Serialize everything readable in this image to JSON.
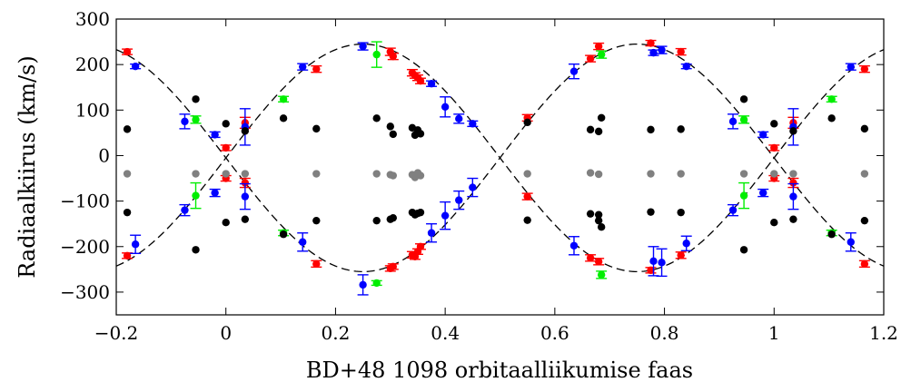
{
  "chart_data": {
    "type": "scatter",
    "xlabel": "BD+48 1098 orbitaalliikumise faas",
    "ylabel": "Radiaalkiirus (km/s)",
    "xlim": [
      -0.2,
      1.2
    ],
    "ylim": [
      -350,
      300
    ],
    "xticks": [
      -0.2,
      0,
      0.2,
      0.4,
      0.6,
      0.8,
      1,
      1.2
    ],
    "xtick_labels": [
      "−0.2",
      "0",
      "0.2",
      "0.4",
      "0.6",
      "0.8",
      "1",
      "1.2"
    ],
    "yticks": [
      -300,
      -200,
      -100,
      0,
      100,
      200,
      300
    ],
    "ytick_labels": [
      "−300",
      "−200",
      "−100",
      "0",
      "100",
      "200",
      "300"
    ],
    "grid": false,
    "model_curves": {
      "style": "dashed",
      "color": "#000000",
      "curves": [
        {
          "gamma": -5,
          "amplitude": 250,
          "phase_offset": 0
        },
        {
          "gamma": -5,
          "amplitude": -250,
          "phase_offset": 0
        }
      ]
    },
    "series": [
      {
        "color": "#ff0000",
        "marker": "circle-with-errorbar",
        "points": [
          {
            "x": -0.18,
            "y": 228,
            "err": 6
          },
          {
            "x": -0.18,
            "y": -220,
            "err": 6
          },
          {
            "x": 0.0,
            "y": 17,
            "err": 6
          },
          {
            "x": 0.0,
            "y": -50,
            "err": 6
          },
          {
            "x": 0.035,
            "y": 72,
            "err": 12
          },
          {
            "x": 0.035,
            "y": -60,
            "err": 10
          },
          {
            "x": 0.165,
            "y": 190,
            "err": 7
          },
          {
            "x": 0.165,
            "y": -238,
            "err": 7
          },
          {
            "x": 0.3,
            "y": 228,
            "err": 8
          },
          {
            "x": 0.3,
            "y": -248,
            "err": 6
          },
          {
            "x": 0.305,
            "y": 218,
            "err": 7
          },
          {
            "x": 0.305,
            "y": -244,
            "err": 6
          },
          {
            "x": 0.34,
            "y": 182,
            "err": 7
          },
          {
            "x": 0.34,
            "y": -218,
            "err": 7
          },
          {
            "x": 0.345,
            "y": 176,
            "err": 6
          },
          {
            "x": 0.345,
            "y": -222,
            "err": 6
          },
          {
            "x": 0.35,
            "y": 171,
            "err": 6
          },
          {
            "x": 0.35,
            "y": -211,
            "err": 6
          },
          {
            "x": 0.355,
            "y": 164,
            "err": 6
          },
          {
            "x": 0.355,
            "y": -200,
            "err": 6
          },
          {
            "x": 0.55,
            "y": 83,
            "err": 7
          },
          {
            "x": 0.55,
            "y": -90,
            "err": 7
          },
          {
            "x": 0.665,
            "y": 213,
            "err": 7
          },
          {
            "x": 0.665,
            "y": -225,
            "err": 7
          },
          {
            "x": 0.68,
            "y": 240,
            "err": 7
          },
          {
            "x": 0.68,
            "y": -233,
            "err": 7
          },
          {
            "x": 0.775,
            "y": 247,
            "err": 6
          },
          {
            "x": 0.775,
            "y": -252,
            "err": 6
          },
          {
            "x": 0.83,
            "y": 228,
            "err": 7
          },
          {
            "x": 0.83,
            "y": -219,
            "err": 7
          },
          {
            "x": 1.0,
            "y": 17,
            "err": 6
          },
          {
            "x": 1.0,
            "y": -50,
            "err": 6
          },
          {
            "x": 1.035,
            "y": 72,
            "err": 12
          },
          {
            "x": 1.035,
            "y": -60,
            "err": 10
          },
          {
            "x": 1.165,
            "y": 190,
            "err": 7
          },
          {
            "x": 1.165,
            "y": -238,
            "err": 7
          }
        ]
      },
      {
        "color": "#0000ff",
        "marker": "circle-with-errorbar",
        "points": [
          {
            "x": -0.165,
            "y": 196,
            "err": 5
          },
          {
            "x": -0.165,
            "y": -195,
            "err": 20
          },
          {
            "x": -0.075,
            "y": 75,
            "err": 16
          },
          {
            "x": -0.075,
            "y": -120,
            "err": 12
          },
          {
            "x": -0.02,
            "y": 46,
            "err": 6
          },
          {
            "x": -0.02,
            "y": -82,
            "err": 8
          },
          {
            "x": 0.035,
            "y": 63,
            "err": 40
          },
          {
            "x": 0.035,
            "y": -90,
            "err": 28
          },
          {
            "x": 0.14,
            "y": 195,
            "err": 7
          },
          {
            "x": 0.14,
            "y": -190,
            "err": 20
          },
          {
            "x": 0.25,
            "y": 240,
            "err": 8
          },
          {
            "x": 0.25,
            "y": -284,
            "err": 22
          },
          {
            "x": 0.375,
            "y": 158,
            "err": 6
          },
          {
            "x": 0.375,
            "y": -170,
            "err": 20
          },
          {
            "x": 0.4,
            "y": 107,
            "err": 22
          },
          {
            "x": 0.4,
            "y": -132,
            "err": 30
          },
          {
            "x": 0.425,
            "y": 81,
            "err": 10
          },
          {
            "x": 0.425,
            "y": -98,
            "err": 20
          },
          {
            "x": 0.45,
            "y": 70,
            "err": 6
          },
          {
            "x": 0.45,
            "y": -70,
            "err": 20
          },
          {
            "x": 0.635,
            "y": 185,
            "err": 16
          },
          {
            "x": 0.635,
            "y": -198,
            "err": 20
          },
          {
            "x": 0.78,
            "y": 226,
            "err": 6
          },
          {
            "x": 0.78,
            "y": -232,
            "err": 32
          },
          {
            "x": 0.795,
            "y": 232,
            "err": 8
          },
          {
            "x": 0.795,
            "y": -235,
            "err": 30
          },
          {
            "x": 0.84,
            "y": 196,
            "err": 5
          },
          {
            "x": 0.84,
            "y": -193,
            "err": 16
          },
          {
            "x": 0.925,
            "y": 75,
            "err": 16
          },
          {
            "x": 0.925,
            "y": -120,
            "err": 12
          },
          {
            "x": 0.98,
            "y": 46,
            "err": 6
          },
          {
            "x": 0.98,
            "y": -82,
            "err": 8
          },
          {
            "x": 1.035,
            "y": 63,
            "err": 40
          },
          {
            "x": 1.035,
            "y": -90,
            "err": 28
          },
          {
            "x": 1.14,
            "y": 195,
            "err": 7
          },
          {
            "x": 1.14,
            "y": -190,
            "err": 20
          }
        ]
      },
      {
        "color": "#00ee00",
        "marker": "circle-with-errorbar",
        "points": [
          {
            "x": -0.055,
            "y": 79,
            "err": 8
          },
          {
            "x": -0.055,
            "y": -88,
            "err": 28
          },
          {
            "x": 0.105,
            "y": 124,
            "err": 6
          },
          {
            "x": 0.105,
            "y": -170,
            "err": 6
          },
          {
            "x": 0.275,
            "y": 222,
            "err": 28
          },
          {
            "x": 0.275,
            "y": -280,
            "err": 5
          },
          {
            "x": 0.685,
            "y": 222,
            "err": 8
          },
          {
            "x": 0.685,
            "y": -262,
            "err": 8
          },
          {
            "x": 0.945,
            "y": 79,
            "err": 8
          },
          {
            "x": 0.945,
            "y": -88,
            "err": 28
          },
          {
            "x": 1.105,
            "y": 124,
            "err": 6
          },
          {
            "x": 1.105,
            "y": -170,
            "err": 6
          }
        ]
      },
      {
        "color": "#000000",
        "marker": "circle",
        "points": [
          {
            "x": -0.18,
            "y": 58
          },
          {
            "x": -0.18,
            "y": -125
          },
          {
            "x": -0.055,
            "y": 124
          },
          {
            "x": -0.055,
            "y": -207
          },
          {
            "x": 0.0,
            "y": 70
          },
          {
            "x": 0.0,
            "y": -147
          },
          {
            "x": 0.035,
            "y": 54
          },
          {
            "x": 0.035,
            "y": -140
          },
          {
            "x": 0.105,
            "y": 82
          },
          {
            "x": 0.105,
            "y": -173
          },
          {
            "x": 0.165,
            "y": 59
          },
          {
            "x": 0.165,
            "y": -143
          },
          {
            "x": 0.275,
            "y": 82
          },
          {
            "x": 0.275,
            "y": -143
          },
          {
            "x": 0.3,
            "y": 64
          },
          {
            "x": 0.3,
            "y": -140
          },
          {
            "x": 0.305,
            "y": 47
          },
          {
            "x": 0.305,
            "y": -137
          },
          {
            "x": 0.34,
            "y": 61
          },
          {
            "x": 0.34,
            "y": -125
          },
          {
            "x": 0.345,
            "y": 45
          },
          {
            "x": 0.345,
            "y": -130
          },
          {
            "x": 0.35,
            "y": 56
          },
          {
            "x": 0.35,
            "y": -127
          },
          {
            "x": 0.355,
            "y": 48
          },
          {
            "x": 0.355,
            "y": -125
          },
          {
            "x": 0.55,
            "y": 73
          },
          {
            "x": 0.55,
            "y": -142
          },
          {
            "x": 0.665,
            "y": 57
          },
          {
            "x": 0.665,
            "y": -128
          },
          {
            "x": 0.68,
            "y": 53
          },
          {
            "x": 0.68,
            "y": -143
          },
          {
            "x": 0.685,
            "y": 83
          },
          {
            "x": 0.685,
            "y": -157
          },
          {
            "x": 0.68,
            "y": -130
          },
          {
            "x": 0.775,
            "y": 57
          },
          {
            "x": 0.775,
            "y": -124
          },
          {
            "x": 0.83,
            "y": 58
          },
          {
            "x": 0.83,
            "y": -125
          },
          {
            "x": 0.945,
            "y": 124
          },
          {
            "x": 0.945,
            "y": -207
          },
          {
            "x": 1.0,
            "y": 70
          },
          {
            "x": 1.0,
            "y": -147
          },
          {
            "x": 1.035,
            "y": 54
          },
          {
            "x": 1.035,
            "y": -140
          },
          {
            "x": 1.105,
            "y": 82
          },
          {
            "x": 1.105,
            "y": -173
          },
          {
            "x": 1.165,
            "y": 59
          },
          {
            "x": 1.165,
            "y": -143
          }
        ]
      },
      {
        "color": "#808080",
        "marker": "circle",
        "points": [
          {
            "x": -0.18,
            "y": -40
          },
          {
            "x": -0.055,
            "y": -40
          },
          {
            "x": 0.0,
            "y": -40
          },
          {
            "x": 0.035,
            "y": -40
          },
          {
            "x": 0.165,
            "y": -40
          },
          {
            "x": 0.275,
            "y": -40
          },
          {
            "x": 0.3,
            "y": -42
          },
          {
            "x": 0.305,
            "y": -44
          },
          {
            "x": 0.34,
            "y": -42
          },
          {
            "x": 0.345,
            "y": -48
          },
          {
            "x": 0.35,
            "y": -38
          },
          {
            "x": 0.355,
            "y": -44
          },
          {
            "x": 0.55,
            "y": -40
          },
          {
            "x": 0.665,
            "y": -38
          },
          {
            "x": 0.68,
            "y": -41
          },
          {
            "x": 0.775,
            "y": -40
          },
          {
            "x": 0.83,
            "y": -40
          },
          {
            "x": 0.945,
            "y": -40
          },
          {
            "x": 1.0,
            "y": -40
          },
          {
            "x": 1.035,
            "y": -40
          },
          {
            "x": 1.165,
            "y": -40
          }
        ]
      }
    ]
  }
}
